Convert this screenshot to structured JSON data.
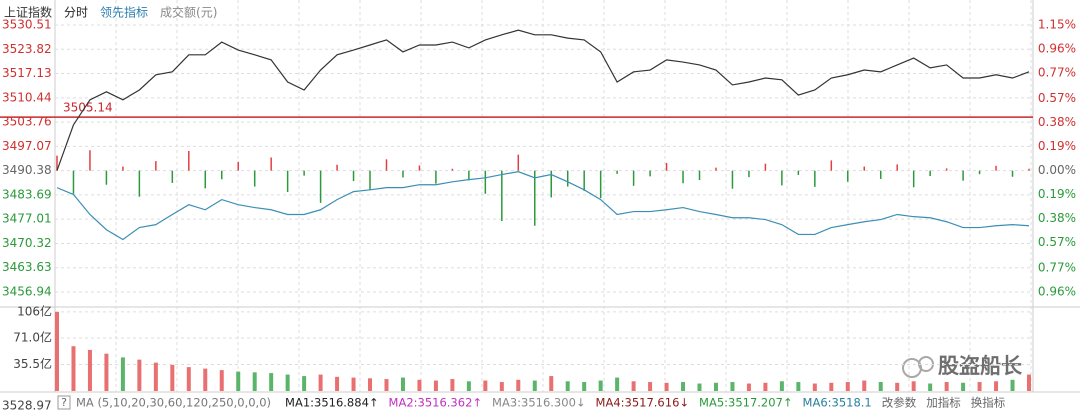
{
  "chart_data": {
    "type": "line",
    "header_tabs": [
      {
        "text": "上证指数",
        "color": "#333"
      },
      {
        "text": "分时",
        "color": "#222"
      },
      {
        "text": "领先指标",
        "color": "#2a7fb0"
      },
      {
        "text": "成交额(元)",
        "color": "#888"
      }
    ],
    "ylim": [
      3456.94,
      3530.51
    ],
    "yticks": [
      3530.51,
      3523.82,
      3517.13,
      3510.44,
      3503.76,
      3497.07,
      3490.38,
      3483.69,
      3477.01,
      3470.32,
      3463.63,
      3456.94
    ],
    "y2lim": [
      -0.96,
      1.15
    ],
    "y2ticks": [
      {
        "value": 1.15,
        "label": "1.15%"
      },
      {
        "value": 0.96,
        "label": "0.96%"
      },
      {
        "value": 0.77,
        "label": "0.77%"
      },
      {
        "value": 0.57,
        "label": "0.57%"
      },
      {
        "value": 0.38,
        "label": "0.38%"
      },
      {
        "value": 0.19,
        "label": "0.19%"
      },
      {
        "value": 0,
        "label": "0.00%"
      },
      {
        "value": -0.19,
        "label": "0.19%"
      },
      {
        "value": -0.38,
        "label": "0.38%"
      },
      {
        "value": -0.57,
        "label": "0.57%"
      },
      {
        "value": -0.77,
        "label": "0.77%"
      },
      {
        "value": -0.96,
        "label": "0.96%"
      }
    ],
    "ref_line": 3505.14,
    "ref_color": "#c8282d",
    "grid": true,
    "series": [
      {
        "name": "分时",
        "color": "#333333",
        "values": [
          3490.4,
          3503.0,
          3509.9,
          3512.1,
          3509.9,
          3512.6,
          3516.8,
          3517.6,
          3522.3,
          3522.3,
          3525.8,
          3523.6,
          3522.3,
          3520.9,
          3514.8,
          3512.6,
          3518.1,
          3522.3,
          3523.6,
          3525.0,
          3526.4,
          3523.1,
          3525.0,
          3525.0,
          3525.8,
          3524.2,
          3526.4,
          3527.8,
          3529.1,
          3527.8,
          3527.8,
          3526.9,
          3526.4,
          3523.1,
          3514.8,
          3517.6,
          3518.1,
          3520.9,
          3520.3,
          3519.5,
          3518.1,
          3514.0,
          3514.8,
          3515.9,
          3515.4,
          3511.2,
          3512.6,
          3515.9,
          3516.8,
          3518.1,
          3517.6,
          3519.5,
          3521.4,
          3518.7,
          3519.5,
          3515.9,
          3515.9,
          3516.8,
          3515.9,
          3517.6
        ]
      },
      {
        "name": "领先指标",
        "color": "#3b8fb5",
        "values": [
          3485.7,
          3483.8,
          3478.3,
          3474.1,
          3471.4,
          3474.7,
          3475.5,
          3478.3,
          3481.0,
          3479.6,
          3482.4,
          3481.0,
          3480.2,
          3479.6,
          3478.3,
          3478.3,
          3479.6,
          3482.4,
          3484.6,
          3485.1,
          3485.7,
          3485.7,
          3486.5,
          3486.5,
          3487.3,
          3487.9,
          3488.4,
          3489.3,
          3490.1,
          3488.4,
          3489.3,
          3487.3,
          3485.1,
          3482.4,
          3478.3,
          3479.1,
          3479.1,
          3479.6,
          3480.2,
          3479.1,
          3478.3,
          3477.4,
          3477.4,
          3476.9,
          3475.5,
          3472.8,
          3472.8,
          3474.7,
          3475.5,
          3476.3,
          3476.9,
          3478.3,
          3477.7,
          3477.4,
          3476.3,
          3474.7,
          3474.7,
          3475.2,
          3475.5,
          3475.2
        ]
      }
    ],
    "bars": {
      "up_color": "#e04040",
      "down_color": "#2a9a3a",
      "values": [
        3494.5,
        3484.0,
        3496.0,
        3486.5,
        3491.5,
        3483.2,
        3493.0,
        3487.0,
        3495.8,
        3485.5,
        3488.0,
        3492.8,
        3486.0,
        3494.0,
        3484.5,
        3489.0,
        3481.5,
        3492.0,
        3487.5,
        3485.0,
        3493.5,
        3488.5,
        3491.8,
        3486.8,
        3490.9,
        3487.7,
        3484.0,
        3476.5,
        3494.8,
        3475.2,
        3483.0,
        3486.0,
        3484.8,
        3482.8,
        3489.5,
        3486.2,
        3488.8,
        3492.5,
        3486.9,
        3487.8,
        3491.2,
        3485.4,
        3488.6,
        3492.3,
        3486.3,
        3489.2,
        3485.9,
        3493.2,
        3487.3,
        3491.5,
        3488.1,
        3492.1,
        3485.8,
        3488.9,
        3491.0,
        3487.6,
        3489.4,
        3491.7,
        3488.7,
        3490.9
      ]
    },
    "volume": {
      "ylim": [
        0,
        108.5
      ],
      "yticks": [
        {
          "value": 106,
          "label": "106亿"
        },
        {
          "value": 71,
          "label": "71.0亿"
        },
        {
          "value": 35.5,
          "label": "35.5亿"
        }
      ],
      "values": [
        106,
        60,
        55,
        50,
        45,
        42,
        38,
        35,
        32,
        30,
        28,
        26,
        25,
        24,
        22,
        20,
        22,
        19,
        18,
        17,
        16,
        18,
        15,
        14,
        16,
        13,
        14,
        12,
        15,
        14,
        20,
        13,
        12,
        14,
        18,
        13,
        12,
        11,
        12,
        10,
        11,
        12,
        10,
        11,
        13,
        12,
        10,
        11,
        12,
        14,
        12,
        11,
        13,
        10,
        12,
        11,
        12,
        13,
        15,
        22
      ]
    },
    "cursor_label": "3528.97",
    "toolbar": [
      {
        "text": "MA (5,10,20,30,60,120,250,0,0,0)",
        "color": "#777"
      },
      {
        "text": "MA1:3516.884↑",
        "color": "#222"
      },
      {
        "text": "MA2:3516.362↑",
        "color": "#c030c0"
      },
      {
        "text": "MA3:3516.300↓",
        "color": "#888"
      },
      {
        "text": "MA4:3517.616↓",
        "color": "#8b1a1a"
      },
      {
        "text": "MA5:3517.207↑",
        "color": "#2a9a3a"
      },
      {
        "text": "MA6:3518.1",
        "color": "#2a7fa0"
      },
      {
        "text": "改参数",
        "color": "#666"
      },
      {
        "text": "加指标",
        "color": "#666"
      },
      {
        "text": "换指标",
        "color": "#666"
      }
    ],
    "help": "?",
    "watermark": "股盗船长"
  }
}
